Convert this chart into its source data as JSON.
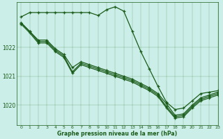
{
  "title": "Graphe pression niveau de la mer (hPa)",
  "background_color": "#cceee8",
  "line_color": "#1a5c1a",
  "x_min": -0.5,
  "x_max": 23,
  "y_min": 1019.3,
  "y_max": 1023.55,
  "y_ticks": [
    1020,
    1021,
    1022
  ],
  "x_ticks": [
    0,
    1,
    2,
    3,
    4,
    5,
    6,
    7,
    8,
    9,
    10,
    11,
    12,
    13,
    14,
    15,
    16,
    17,
    18,
    19,
    20,
    21,
    22,
    23
  ],
  "series": [
    {
      "x": [
        0,
        1,
        2,
        3,
        4,
        5,
        6,
        7,
        8,
        9,
        10,
        11,
        12,
        13,
        14,
        15,
        16,
        17,
        18,
        19,
        20,
        21,
        22,
        23
      ],
      "y": [
        1023.05,
        1023.2,
        1023.2,
        1023.2,
        1023.2,
        1023.2,
        1023.2,
        1023.2,
        1023.2,
        1023.1,
        1023.3,
        1023.4,
        1023.25,
        1022.55,
        1021.85,
        1021.25,
        1020.65,
        1020.1,
        1019.85,
        1019.9,
        1020.15,
        1020.4,
        1020.45,
        1020.5
      ]
    },
    {
      "x": [
        0,
        1,
        2,
        3,
        4,
        5,
        6,
        7,
        8,
        9,
        10,
        11,
        12,
        13,
        14,
        15,
        16,
        17,
        18,
        19,
        20,
        21,
        22,
        23
      ],
      "y": [
        1022.85,
        1022.55,
        1022.25,
        1022.25,
        1021.95,
        1021.75,
        1021.3,
        1021.5,
        1021.4,
        1021.3,
        1021.2,
        1021.1,
        1021.0,
        1020.9,
        1020.75,
        1020.6,
        1020.4,
        1020.05,
        1019.65,
        1019.7,
        1020.0,
        1020.25,
        1020.35,
        1020.45
      ]
    },
    {
      "x": [
        0,
        1,
        2,
        3,
        4,
        5,
        6,
        7,
        8,
        9,
        10,
        11,
        12,
        13,
        14,
        15,
        16,
        17,
        18,
        19,
        20,
        21,
        22,
        23
      ],
      "y": [
        1022.85,
        1022.55,
        1022.2,
        1022.2,
        1021.9,
        1021.7,
        1021.15,
        1021.45,
        1021.35,
        1021.25,
        1021.15,
        1021.05,
        1020.95,
        1020.85,
        1020.7,
        1020.55,
        1020.35,
        1019.95,
        1019.6,
        1019.65,
        1019.95,
        1020.2,
        1020.3,
        1020.4
      ]
    },
    {
      "x": [
        0,
        1,
        2,
        3,
        4,
        5,
        6,
        7,
        8,
        9,
        10,
        11,
        12,
        13,
        14,
        15,
        16,
        17,
        18,
        19,
        20,
        21,
        22,
        23
      ],
      "y": [
        1022.8,
        1022.5,
        1022.15,
        1022.15,
        1021.85,
        1021.65,
        1021.1,
        1021.4,
        1021.3,
        1021.2,
        1021.1,
        1021.0,
        1020.9,
        1020.8,
        1020.65,
        1020.5,
        1020.3,
        1019.9,
        1019.55,
        1019.6,
        1019.9,
        1020.15,
        1020.25,
        1020.35
      ]
    }
  ]
}
